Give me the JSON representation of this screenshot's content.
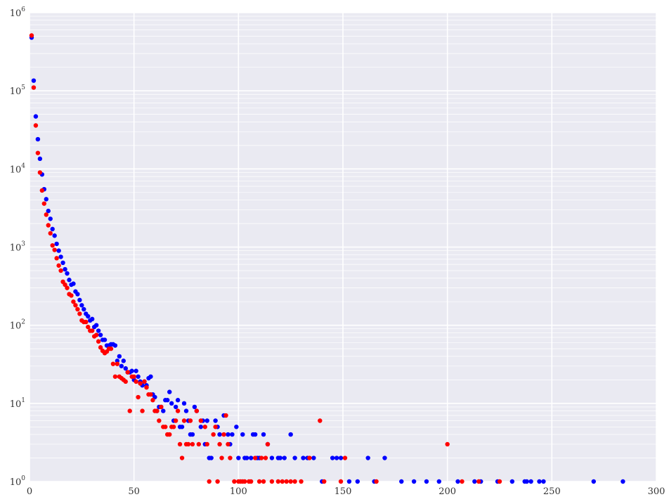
{
  "chart_data": {
    "type": "scatter",
    "title": "",
    "xlabel": "",
    "ylabel": "",
    "xlim": [
      0,
      300
    ],
    "ylim": [
      1,
      1000000
    ],
    "yscale": "log",
    "grid": true,
    "background_color": "#EAEAF2",
    "x_ticks": [
      {
        "value": 0,
        "label": "0"
      },
      {
        "value": 50,
        "label": "50"
      },
      {
        "value": 100,
        "label": "100"
      },
      {
        "value": 150,
        "label": "150"
      },
      {
        "value": 200,
        "label": "200"
      },
      {
        "value": 250,
        "label": "250"
      },
      {
        "value": 300,
        "label": "300"
      }
    ],
    "y_ticks": [
      {
        "value": 1,
        "base": "10",
        "exp": "0"
      },
      {
        "value": 10,
        "base": "10",
        "exp": "1"
      },
      {
        "value": 100,
        "base": "10",
        "exp": "2"
      },
      {
        "value": 1000,
        "base": "10",
        "exp": "3"
      },
      {
        "value": 10000,
        "base": "10",
        "exp": "4"
      },
      {
        "value": 100000,
        "base": "10",
        "exp": "5"
      },
      {
        "value": 1000000,
        "base": "10",
        "exp": "6"
      }
    ],
    "series": [
      {
        "color": "#0000FF",
        "points": [
          [
            1,
            480000
          ],
          [
            2,
            135000
          ],
          [
            3,
            47000
          ],
          [
            4,
            24000
          ],
          [
            5,
            13500
          ],
          [
            6,
            8500
          ],
          [
            7,
            5500
          ],
          [
            8,
            4100
          ],
          [
            9,
            2900
          ],
          [
            10,
            2300
          ],
          [
            11,
            1700
          ],
          [
            12,
            1400
          ],
          [
            13,
            1100
          ],
          [
            14,
            900
          ],
          [
            15,
            750
          ],
          [
            16,
            630
          ],
          [
            17,
            520
          ],
          [
            18,
            460
          ],
          [
            19,
            380
          ],
          [
            20,
            330
          ],
          [
            21,
            340
          ],
          [
            22,
            270
          ],
          [
            23,
            250
          ],
          [
            24,
            210
          ],
          [
            25,
            180
          ],
          [
            26,
            160
          ],
          [
            27,
            140
          ],
          [
            28,
            130
          ],
          [
            29,
            115
          ],
          [
            30,
            120
          ],
          [
            31,
            95
          ],
          [
            32,
            100
          ],
          [
            33,
            85
          ],
          [
            34,
            75
          ],
          [
            35,
            65
          ],
          [
            36,
            65
          ],
          [
            37,
            55
          ],
          [
            38,
            55
          ],
          [
            39,
            57
          ],
          [
            40,
            57
          ],
          [
            41,
            55
          ],
          [
            42,
            35
          ],
          [
            43,
            40
          ],
          [
            44,
            30
          ],
          [
            45,
            35
          ],
          [
            46,
            28
          ],
          [
            47,
            25
          ],
          [
            48,
            25
          ],
          [
            49,
            26
          ],
          [
            50,
            20
          ],
          [
            51,
            26
          ],
          [
            52,
            22
          ],
          [
            53,
            19
          ],
          [
            54,
            17
          ],
          [
            55,
            19
          ],
          [
            56,
            17
          ],
          [
            57,
            21
          ],
          [
            58,
            22
          ],
          [
            59,
            13
          ],
          [
            60,
            12
          ],
          [
            61,
            8
          ],
          [
            62,
            9
          ],
          [
            63,
            9
          ],
          [
            64,
            8
          ],
          [
            65,
            11
          ],
          [
            66,
            11
          ],
          [
            67,
            14
          ],
          [
            68,
            10
          ],
          [
            69,
            6
          ],
          [
            70,
            9
          ],
          [
            71,
            11
          ],
          [
            72,
            5
          ],
          [
            73,
            5
          ],
          [
            74,
            10
          ],
          [
            75,
            8
          ],
          [
            76,
            6
          ],
          [
            77,
            4
          ],
          [
            78,
            4
          ],
          [
            79,
            9
          ],
          [
            80,
            8
          ],
          [
            82,
            5
          ],
          [
            83,
            6
          ],
          [
            84,
            3
          ],
          [
            85,
            6
          ],
          [
            86,
            2
          ],
          [
            87,
            2
          ],
          [
            89,
            6
          ],
          [
            90,
            5
          ],
          [
            91,
            4
          ],
          [
            93,
            7
          ],
          [
            95,
            4
          ],
          [
            96,
            3
          ],
          [
            97,
            4
          ],
          [
            99,
            5
          ],
          [
            100,
            2
          ],
          [
            102,
            4
          ],
          [
            103,
            2
          ],
          [
            104,
            2
          ],
          [
            106,
            2
          ],
          [
            107,
            4
          ],
          [
            108,
            4
          ],
          [
            109,
            2
          ],
          [
            110,
            2
          ],
          [
            112,
            4
          ],
          [
            114,
            3
          ],
          [
            116,
            2
          ],
          [
            119,
            2
          ],
          [
            120,
            2
          ],
          [
            122,
            2
          ],
          [
            125,
            4
          ],
          [
            127,
            2
          ],
          [
            131,
            2
          ],
          [
            133,
            2
          ],
          [
            136,
            2
          ],
          [
            140,
            1
          ],
          [
            145,
            2
          ],
          [
            147,
            2
          ],
          [
            149,
            2
          ],
          [
            153,
            1
          ],
          [
            157,
            1
          ],
          [
            162,
            2
          ],
          [
            165,
            1
          ],
          [
            170,
            2
          ],
          [
            178,
            1
          ],
          [
            184,
            1
          ],
          [
            190,
            1
          ],
          [
            196,
            1
          ],
          [
            205,
            1
          ],
          [
            213,
            1
          ],
          [
            216,
            1
          ],
          [
            224,
            1
          ],
          [
            231,
            1
          ],
          [
            237,
            1
          ],
          [
            238,
            1
          ],
          [
            240,
            1
          ],
          [
            244,
            1
          ],
          [
            246,
            1
          ],
          [
            270,
            1
          ],
          [
            284,
            1
          ]
        ]
      },
      {
        "color": "#FF0000",
        "points": [
          [
            1,
            510000
          ],
          [
            2,
            110000
          ],
          [
            3,
            36000
          ],
          [
            4,
            16000
          ],
          [
            5,
            9000
          ],
          [
            6,
            5300
          ],
          [
            7,
            3600
          ],
          [
            8,
            2600
          ],
          [
            9,
            1900
          ],
          [
            10,
            1500
          ],
          [
            11,
            1050
          ],
          [
            12,
            920
          ],
          [
            13,
            720
          ],
          [
            14,
            580
          ],
          [
            15,
            500
          ],
          [
            16,
            360
          ],
          [
            17,
            330
          ],
          [
            18,
            300
          ],
          [
            19,
            250
          ],
          [
            20,
            240
          ],
          [
            21,
            200
          ],
          [
            22,
            180
          ],
          [
            23,
            160
          ],
          [
            24,
            140
          ],
          [
            25,
            115
          ],
          [
            26,
            110
          ],
          [
            27,
            110
          ],
          [
            28,
            95
          ],
          [
            29,
            85
          ],
          [
            30,
            85
          ],
          [
            31,
            72
          ],
          [
            32,
            75
          ],
          [
            33,
            62
          ],
          [
            34,
            52
          ],
          [
            35,
            47
          ],
          [
            36,
            44
          ],
          [
            37,
            46
          ],
          [
            38,
            50
          ],
          [
            39,
            50
          ],
          [
            40,
            32
          ],
          [
            41,
            22
          ],
          [
            42,
            32
          ],
          [
            43,
            22
          ],
          [
            44,
            21
          ],
          [
            45,
            20
          ],
          [
            46,
            19
          ],
          [
            47,
            25
          ],
          [
            48,
            8
          ],
          [
            49,
            22
          ],
          [
            50,
            22
          ],
          [
            51,
            19
          ],
          [
            52,
            12
          ],
          [
            53,
            18
          ],
          [
            54,
            8
          ],
          [
            55,
            19
          ],
          [
            56,
            16
          ],
          [
            57,
            13
          ],
          [
            58,
            13
          ],
          [
            59,
            11
          ],
          [
            60,
            8
          ],
          [
            61,
            8
          ],
          [
            62,
            6
          ],
          [
            63,
            9
          ],
          [
            64,
            5
          ],
          [
            65,
            5
          ],
          [
            66,
            4
          ],
          [
            67,
            4
          ],
          [
            68,
            5
          ],
          [
            69,
            5
          ],
          [
            70,
            6
          ],
          [
            71,
            8
          ],
          [
            72,
            3
          ],
          [
            73,
            2
          ],
          [
            74,
            6
          ],
          [
            75,
            3
          ],
          [
            76,
            3
          ],
          [
            77,
            6
          ],
          [
            78,
            3
          ],
          [
            80,
            8
          ],
          [
            81,
            3
          ],
          [
            82,
            6
          ],
          [
            84,
            5
          ],
          [
            85,
            3
          ],
          [
            86,
            1
          ],
          [
            88,
            4
          ],
          [
            89,
            5
          ],
          [
            90,
            1
          ],
          [
            91,
            3
          ],
          [
            92,
            2
          ],
          [
            93,
            4
          ],
          [
            94,
            7
          ],
          [
            95,
            3
          ],
          [
            96,
            2
          ],
          [
            98,
            1
          ],
          [
            100,
            1
          ],
          [
            101,
            1
          ],
          [
            102,
            1
          ],
          [
            103,
            1
          ],
          [
            105,
            1
          ],
          [
            106,
            1
          ],
          [
            108,
            2
          ],
          [
            110,
            1
          ],
          [
            111,
            2
          ],
          [
            112,
            1
          ],
          [
            113,
            2
          ],
          [
            114,
            3
          ],
          [
            116,
            1
          ],
          [
            119,
            1
          ],
          [
            121,
            1
          ],
          [
            123,
            1
          ],
          [
            125,
            1
          ],
          [
            127,
            1
          ],
          [
            130,
            1
          ],
          [
            134,
            2
          ],
          [
            139,
            6
          ],
          [
            141,
            1
          ],
          [
            149,
            1
          ],
          [
            151,
            2
          ],
          [
            166,
            1
          ],
          [
            200,
            3
          ],
          [
            207,
            1
          ],
          [
            215,
            1
          ],
          [
            225,
            1
          ]
        ]
      }
    ]
  }
}
